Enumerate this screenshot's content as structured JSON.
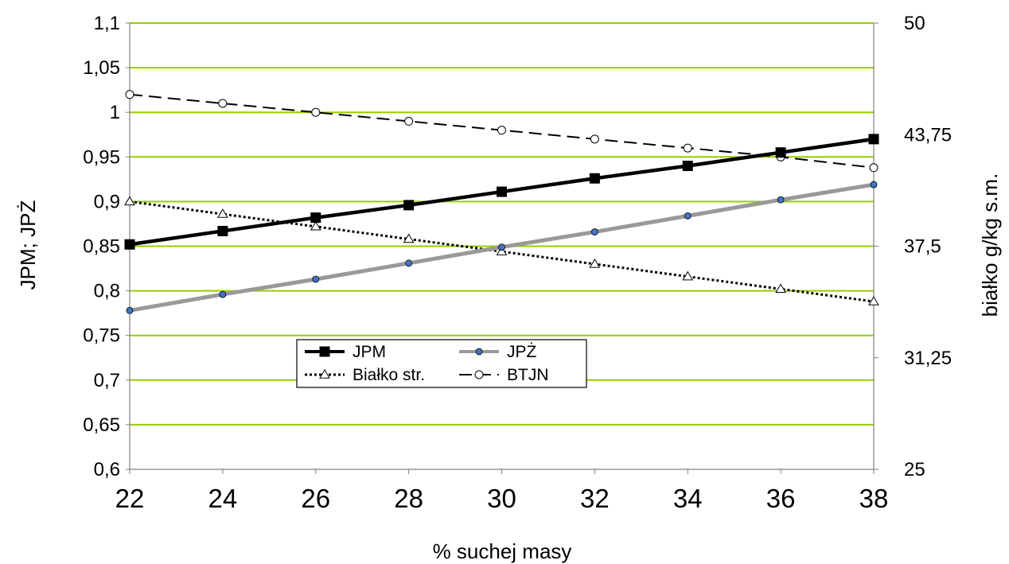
{
  "chart_data": {
    "type": "line",
    "xlabel": "% suchej masy",
    "ylabel_left": "JPM; JPŻ",
    "ylabel_right": "białko g/kg s.m.",
    "x": [
      22,
      24,
      26,
      28,
      30,
      32,
      34,
      36,
      38
    ],
    "x_ticks": [
      "22",
      "24",
      "26",
      "28",
      "30",
      "32",
      "34",
      "36",
      "38"
    ],
    "ylim_left": [
      0.6,
      1.1
    ],
    "yticks_left": [
      "0,6",
      "0,65",
      "0,7",
      "0,75",
      "0,8",
      "0,85",
      "0,9",
      "0,95",
      "1",
      "1,05",
      "1,1"
    ],
    "ylim_right": [
      25,
      50
    ],
    "yticks_right": [
      "25",
      "31,25",
      "37,5",
      "43,75",
      "50"
    ],
    "grid": "horizontal",
    "grid_color": "#99cc00",
    "legend_position": "lower-center",
    "series": [
      {
        "name": "JPM",
        "axis": "left",
        "color": "#000000",
        "marker": "square",
        "line": "solid",
        "values": [
          0.852,
          0.867,
          0.882,
          0.896,
          0.911,
          0.926,
          0.94,
          0.955,
          0.97
        ]
      },
      {
        "name": "JPŻ",
        "axis": "left",
        "color": "#999999",
        "marker_color": "#4472c4",
        "marker": "circle",
        "line": "solid",
        "values": [
          0.778,
          0.796,
          0.813,
          0.831,
          0.849,
          0.866,
          0.884,
          0.902,
          0.919
        ]
      },
      {
        "name": "Białko str.",
        "axis": "right",
        "color": "#000000",
        "marker": "triangle",
        "line": "dotted",
        "values": [
          40.0,
          39.3,
          38.6,
          37.9,
          37.2,
          36.5,
          35.8,
          35.1,
          34.4
        ]
      },
      {
        "name": "BTJN",
        "axis": "right",
        "color": "#000000",
        "marker": "circle-open",
        "line": "dashed",
        "values": [
          46.0,
          45.5,
          45.0,
          44.5,
          44.0,
          43.5,
          43.0,
          42.5,
          41.9
        ]
      }
    ]
  }
}
